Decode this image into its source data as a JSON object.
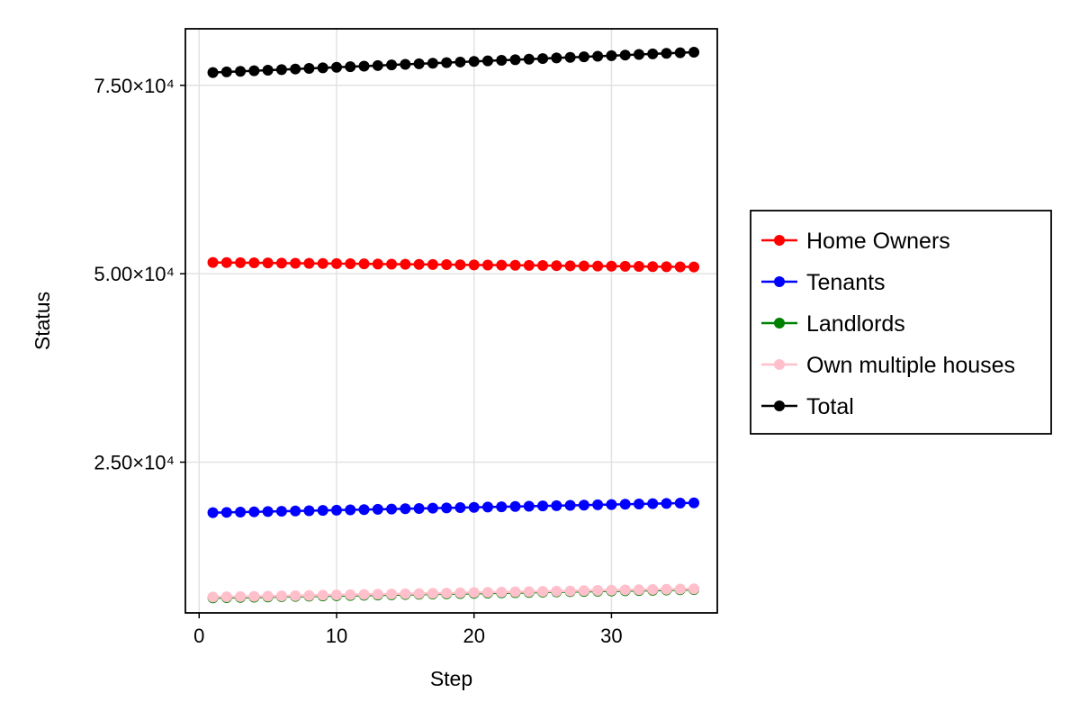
{
  "chart_data": {
    "type": "line",
    "title": "",
    "xlabel": "Step",
    "ylabel": "Status",
    "xlim": [
      -1,
      37.7
    ],
    "ylim": [
      5000,
      82500
    ],
    "grid": true,
    "legend_position": "right",
    "x_ticks": [
      {
        "value": 0,
        "label": "0"
      },
      {
        "value": 10,
        "label": "10"
      },
      {
        "value": 20,
        "label": "20"
      },
      {
        "value": 30,
        "label": "30"
      }
    ],
    "y_ticks": [
      {
        "value": 25000,
        "label": "2.50×10⁴"
      },
      {
        "value": 50000,
        "label": "5.00×10⁴"
      },
      {
        "value": 75000,
        "label": "7.50×10⁴"
      }
    ],
    "x": [
      1,
      2,
      3,
      4,
      5,
      6,
      7,
      8,
      9,
      10,
      11,
      12,
      13,
      14,
      15,
      16,
      17,
      18,
      19,
      20,
      21,
      22,
      23,
      24,
      25,
      26,
      27,
      28,
      29,
      30,
      31,
      32,
      33,
      34,
      35,
      36
    ],
    "series": [
      {
        "name": "Home Owners",
        "color": "#ff0000",
        "values": [
          51500,
          51483,
          51466,
          51449,
          51431,
          51414,
          51397,
          51380,
          51363,
          51346,
          51329,
          51311,
          51294,
          51277,
          51260,
          51243,
          51226,
          51209,
          51191,
          51174,
          51157,
          51140,
          51123,
          51106,
          51089,
          51071,
          51054,
          51037,
          51020,
          51003,
          50986,
          50969,
          50951,
          50934,
          50917,
          50900
        ]
      },
      {
        "name": "Tenants",
        "color": "#0000ff",
        "values": [
          18300,
          18337,
          18374,
          18411,
          18449,
          18486,
          18523,
          18560,
          18597,
          18634,
          18671,
          18709,
          18746,
          18783,
          18820,
          18857,
          18894,
          18931,
          18969,
          19006,
          19043,
          19080,
          19117,
          19154,
          19191,
          19229,
          19266,
          19303,
          19340,
          19377,
          19414,
          19451,
          19489,
          19526,
          19563,
          19600
        ]
      },
      {
        "name": "Landlords",
        "color": "#008000",
        "values": [
          7000,
          7031,
          7063,
          7094,
          7126,
          7157,
          7189,
          7220,
          7251,
          7283,
          7314,
          7346,
          7377,
          7409,
          7440,
          7471,
          7503,
          7534,
          7566,
          7597,
          7629,
          7660,
          7691,
          7723,
          7754,
          7786,
          7817,
          7849,
          7880,
          7911,
          7943,
          7974,
          8006,
          8037,
          8069,
          8100
        ]
      },
      {
        "name": "Own multiple houses",
        "color": "#ffc0cb",
        "values": [
          7100,
          7131,
          7163,
          7194,
          7226,
          7257,
          7289,
          7320,
          7351,
          7383,
          7414,
          7446,
          7477,
          7509,
          7540,
          7571,
          7603,
          7634,
          7666,
          7697,
          7729,
          7760,
          7791,
          7823,
          7854,
          7886,
          7917,
          7949,
          7980,
          8011,
          8043,
          8074,
          8106,
          8137,
          8169,
          8200
        ]
      },
      {
        "name": "Total",
        "color": "#000000",
        "values": [
          76700,
          76777,
          76854,
          76931,
          77009,
          77086,
          77163,
          77240,
          77317,
          77394,
          77471,
          77549,
          77626,
          77703,
          77780,
          77857,
          77934,
          78011,
          78089,
          78166,
          78243,
          78320,
          78397,
          78474,
          78551,
          78629,
          78706,
          78783,
          78860,
          78937,
          79014,
          79091,
          79169,
          79246,
          79323,
          79400
        ]
      }
    ]
  }
}
